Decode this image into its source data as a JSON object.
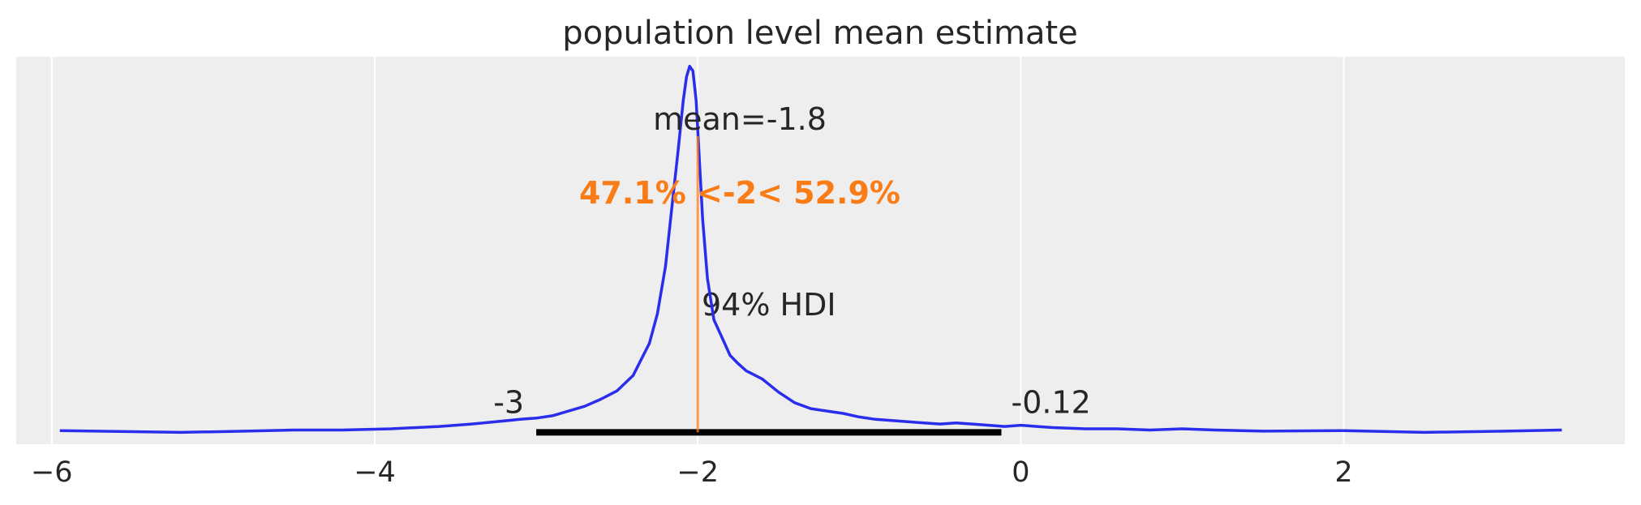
{
  "chart_data": {
    "type": "line",
    "title": "population level mean estimate",
    "xlabel": "",
    "ylabel": "",
    "xlim": [
      -6.22,
      3.74
    ],
    "ylim": [
      -0.1,
      3.17
    ],
    "grid": true,
    "x_ticks": [
      {
        "value": -6,
        "label": "−6"
      },
      {
        "value": -4,
        "label": "−4"
      },
      {
        "value": -2,
        "label": "−2"
      },
      {
        "value": 0,
        "label": "0"
      },
      {
        "value": 2,
        "label": "2"
      }
    ],
    "series": [
      {
        "color": "#2a2eec",
        "x": [
          -5.95,
          -5.2,
          -4.8,
          -4.5,
          -4.2,
          -3.9,
          -3.6,
          -3.4,
          -3.25,
          -3.1,
          -3.0,
          -2.9,
          -2.8,
          -2.7,
          -2.6,
          -2.5,
          -2.4,
          -2.3,
          -2.25,
          -2.2,
          -2.16,
          -2.12,
          -2.09,
          -2.07,
          -2.05,
          -2.03,
          -2.01,
          -1.99,
          -1.97,
          -1.94,
          -1.9,
          -1.85,
          -1.8,
          -1.75,
          -1.7,
          -1.6,
          -1.5,
          -1.4,
          -1.3,
          -1.2,
          -1.1,
          -1.0,
          -0.9,
          -0.8,
          -0.7,
          -0.6,
          -0.5,
          -0.4,
          -0.3,
          -0.2,
          -0.1,
          0.0,
          0.1,
          0.2,
          0.4,
          0.6,
          0.8,
          1.0,
          1.2,
          1.5,
          2.0,
          2.5,
          3.0,
          3.35
        ],
        "y": [
          0.015,
          0.0,
          0.01,
          0.02,
          0.02,
          0.03,
          0.05,
          0.07,
          0.09,
          0.11,
          0.12,
          0.14,
          0.18,
          0.22,
          0.28,
          0.35,
          0.48,
          0.75,
          1.0,
          1.4,
          1.9,
          2.4,
          2.8,
          3.0,
          3.09,
          3.05,
          2.8,
          2.3,
          1.8,
          1.3,
          0.95,
          0.8,
          0.65,
          0.58,
          0.52,
          0.45,
          0.34,
          0.25,
          0.2,
          0.18,
          0.16,
          0.13,
          0.11,
          0.1,
          0.09,
          0.08,
          0.07,
          0.08,
          0.07,
          0.06,
          0.05,
          0.06,
          0.05,
          0.04,
          0.03,
          0.03,
          0.02,
          0.03,
          0.02,
          0.01,
          0.015,
          0.0,
          0.01,
          0.02
        ]
      }
    ],
    "hdi": {
      "low": -3.0,
      "high": -0.12,
      "label": "94% HDI",
      "low_label": "-3",
      "high_label": "-0.12"
    },
    "mean": {
      "value": -1.8,
      "label": "mean=-1.8"
    },
    "ref": {
      "value": -2.0,
      "label": "47.1% <-2< 52.9%",
      "color": "#fa7c17",
      "ymax": 2.5
    }
  }
}
